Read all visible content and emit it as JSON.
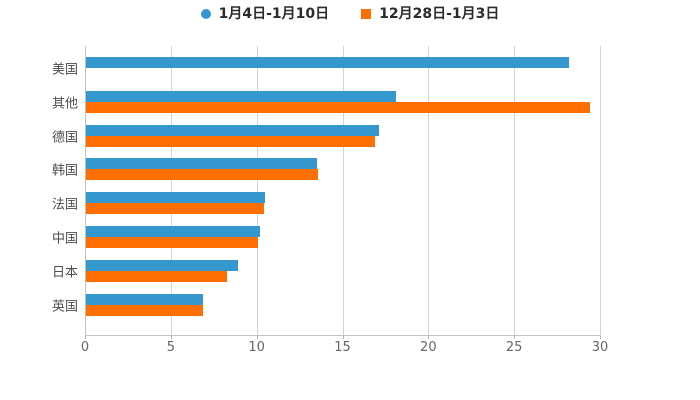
{
  "legend": {
    "items": [
      {
        "label": "1月4日-1月10日",
        "color": "#3498cf",
        "shape": "circle"
      },
      {
        "label": "12月28日-1月3日",
        "color": "#ff6e00",
        "shape": "square"
      }
    ]
  },
  "colors": {
    "series_blue": "#3498cf",
    "series_orange": "#ff6e00",
    "gridline": "#d4d4d4",
    "axis": "#c2c2c2",
    "tick_label": "#666666",
    "category_label": "#4d4d4d",
    "legend_text": "#2b2b2b",
    "background": "#ffffff"
  },
  "chart_data": {
    "type": "bar",
    "orientation": "horizontal",
    "title": "",
    "xlabel": "",
    "ylabel": "",
    "categories": [
      "美国",
      "其他",
      "德国",
      "韩国",
      "法国",
      "中国",
      "日本",
      "英国"
    ],
    "series": [
      {
        "name": "1月4日-1月10日",
        "color": "#3498cf",
        "marker": "circle",
        "values": [
          28.2,
          18.1,
          17.1,
          13.5,
          10.5,
          10.2,
          8.9,
          6.9
        ]
      },
      {
        "name": "12月28日-1月3日",
        "color": "#ff6e00",
        "marker": "square",
        "values": [
          null,
          29.4,
          16.9,
          13.6,
          10.4,
          10.1,
          8.3,
          6.9
        ]
      }
    ],
    "xlim": [
      0,
      30
    ],
    "xticks": [
      0,
      5,
      10,
      15,
      20,
      25,
      30
    ],
    "grid": true,
    "legend_position": "top"
  }
}
